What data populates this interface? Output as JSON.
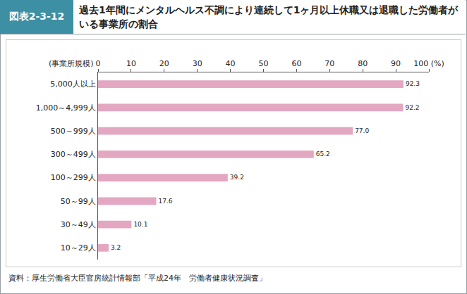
{
  "chart_data": {
    "type": "bar",
    "figure_label": "図表2-3-12",
    "title": "過去1年間にメンタルヘルス不調により連続して1ヶ月以上休職又は退職した労働者がいる事業所の割合",
    "y_label": "(事業所規模)",
    "source": "資料：厚生労働省大臣官房統計情報部「平成24年　労働者健康状況調査」",
    "categories": [
      "5,000人以上",
      "1,000～4,999人",
      "500～999人",
      "300～499人",
      "100～299人",
      "50～99人",
      "30～49人",
      "10～29人"
    ],
    "values": [
      92.3,
      92.2,
      77.0,
      65.2,
      39.2,
      17.6,
      10.1,
      3.2
    ],
    "value_labels": [
      "92.3",
      "92.2",
      "77.0",
      "65.2",
      "39.2",
      "17.6",
      "10.1",
      "3.2"
    ],
    "color": "#e3a7c2",
    "orientation": "horizontal",
    "data_labels": true,
    "grid": false,
    "xlim": [
      0,
      100
    ],
    "xticks": [
      0,
      10,
      20,
      30,
      40,
      50,
      60,
      70,
      80,
      90,
      {
        "value": 100,
        "label": "100 (%)"
      }
    ]
  }
}
